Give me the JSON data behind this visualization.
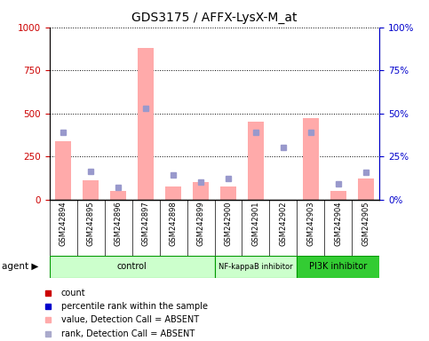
{
  "title": "GDS3175 / AFFX-LysX-M_at",
  "samples": [
    "GSM242894",
    "GSM242895",
    "GSM242896",
    "GSM242897",
    "GSM242898",
    "GSM242899",
    "GSM242900",
    "GSM242901",
    "GSM242902",
    "GSM242903",
    "GSM242904",
    "GSM242905"
  ],
  "bar_values_pink": [
    340,
    110,
    50,
    880,
    75,
    100,
    75,
    450,
    0,
    470,
    50,
    120
  ],
  "rank_lightblue": [
    390,
    165,
    70,
    530,
    140,
    100,
    120,
    390,
    300,
    390,
    90,
    160
  ],
  "ylim_left": [
    0,
    1000
  ],
  "ylim_right": [
    0,
    100
  ],
  "yticks_left": [
    0,
    250,
    500,
    750,
    1000
  ],
  "yticks_right": [
    0,
    25,
    50,
    75,
    100
  ],
  "ytick_labels_right": [
    "0%",
    "25%",
    "50%",
    "75%",
    "100%"
  ],
  "group_labels": [
    "control",
    "NF-kappaB inhibitor",
    "PI3K inhibitor"
  ],
  "group_ranges": [
    [
      0,
      6
    ],
    [
      6,
      9
    ],
    [
      9,
      12
    ]
  ],
  "group_colors": [
    "#ccffcc",
    "#ccffcc",
    "#33cc33"
  ],
  "legend_colors": [
    "#cc0000",
    "#0000cc",
    "#ffaaaa",
    "#aaaacc"
  ],
  "legend_labels": [
    "count",
    "percentile rank within the sample",
    "value, Detection Call = ABSENT",
    "rank, Detection Call = ABSENT"
  ],
  "bar_color_pink": "#ffaaaa",
  "dot_color_lightblue": "#9999cc",
  "left_axis_color": "#cc0000",
  "right_axis_color": "#0000cc",
  "tick_area_color": "#cccccc",
  "bg_color": "#ffffff"
}
